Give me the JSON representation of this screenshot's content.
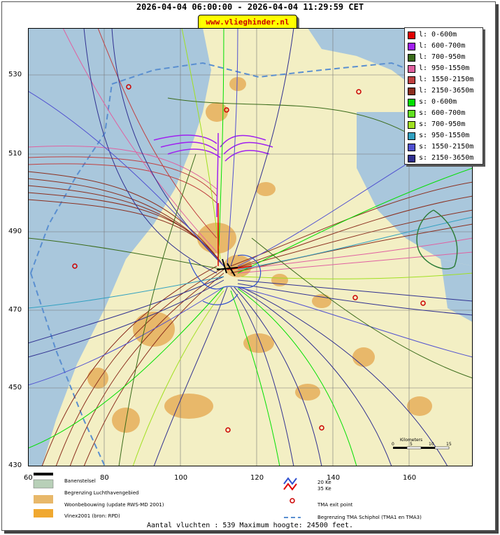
{
  "title": "2026-04-04 06:00:00 - 2026-04-04 11:29:59 CET",
  "site_label": "www.vlieghinder.nl",
  "axes": {
    "y_ticks": [
      "530",
      "510",
      "490",
      "470",
      "450",
      "430"
    ],
    "x_ticks": [
      "60",
      "80",
      "100",
      "120",
      "140",
      "160"
    ]
  },
  "legend": {
    "items": [
      {
        "label": "l: 0-600m",
        "color": "#e00000"
      },
      {
        "label": "l: 600-700m",
        "color": "#a020f0"
      },
      {
        "label": "l: 700-950m",
        "color": "#3a6b1a"
      },
      {
        "label": "l: 950-1550m",
        "color": "#e060a0"
      },
      {
        "label": "l: 1550-2150m",
        "color": "#c04040"
      },
      {
        "label": "l: 2150-3650m",
        "color": "#8b2e1e"
      },
      {
        "label": "s: 0-600m",
        "color": "#00e000"
      },
      {
        "label": "s: 600-700m",
        "color": "#60e020"
      },
      {
        "label": "s: 700-950m",
        "color": "#a0e020"
      },
      {
        "label": "s: 950-1550m",
        "color": "#30a0c0"
      },
      {
        "label": "s: 1550-2150m",
        "color": "#5050d0"
      },
      {
        "label": "s: 2150-3650m",
        "color": "#303090"
      }
    ]
  },
  "scalebar": {
    "label": "Kilometers",
    "ticks": [
      "0",
      "5",
      "10",
      "15"
    ]
  },
  "bottom_legend": {
    "runways": "Banenstelsel",
    "airport_boundary": "Begrenzing Luchthavengebied",
    "housing": "Woonbebouwing (update RWS-MD 2001)",
    "vinex": "Vinex2001 (bron: RPD)",
    "ke20": "20 Ke",
    "ke35": "35 Ke",
    "tma_exit": "TMA exit point",
    "tma_boundary": "Begrenzing TMA Schiphol  (TMA1 en TMA3)"
  },
  "footer": "Aantal vluchten : 539 Maximum hoogte: 24500 feet."
}
